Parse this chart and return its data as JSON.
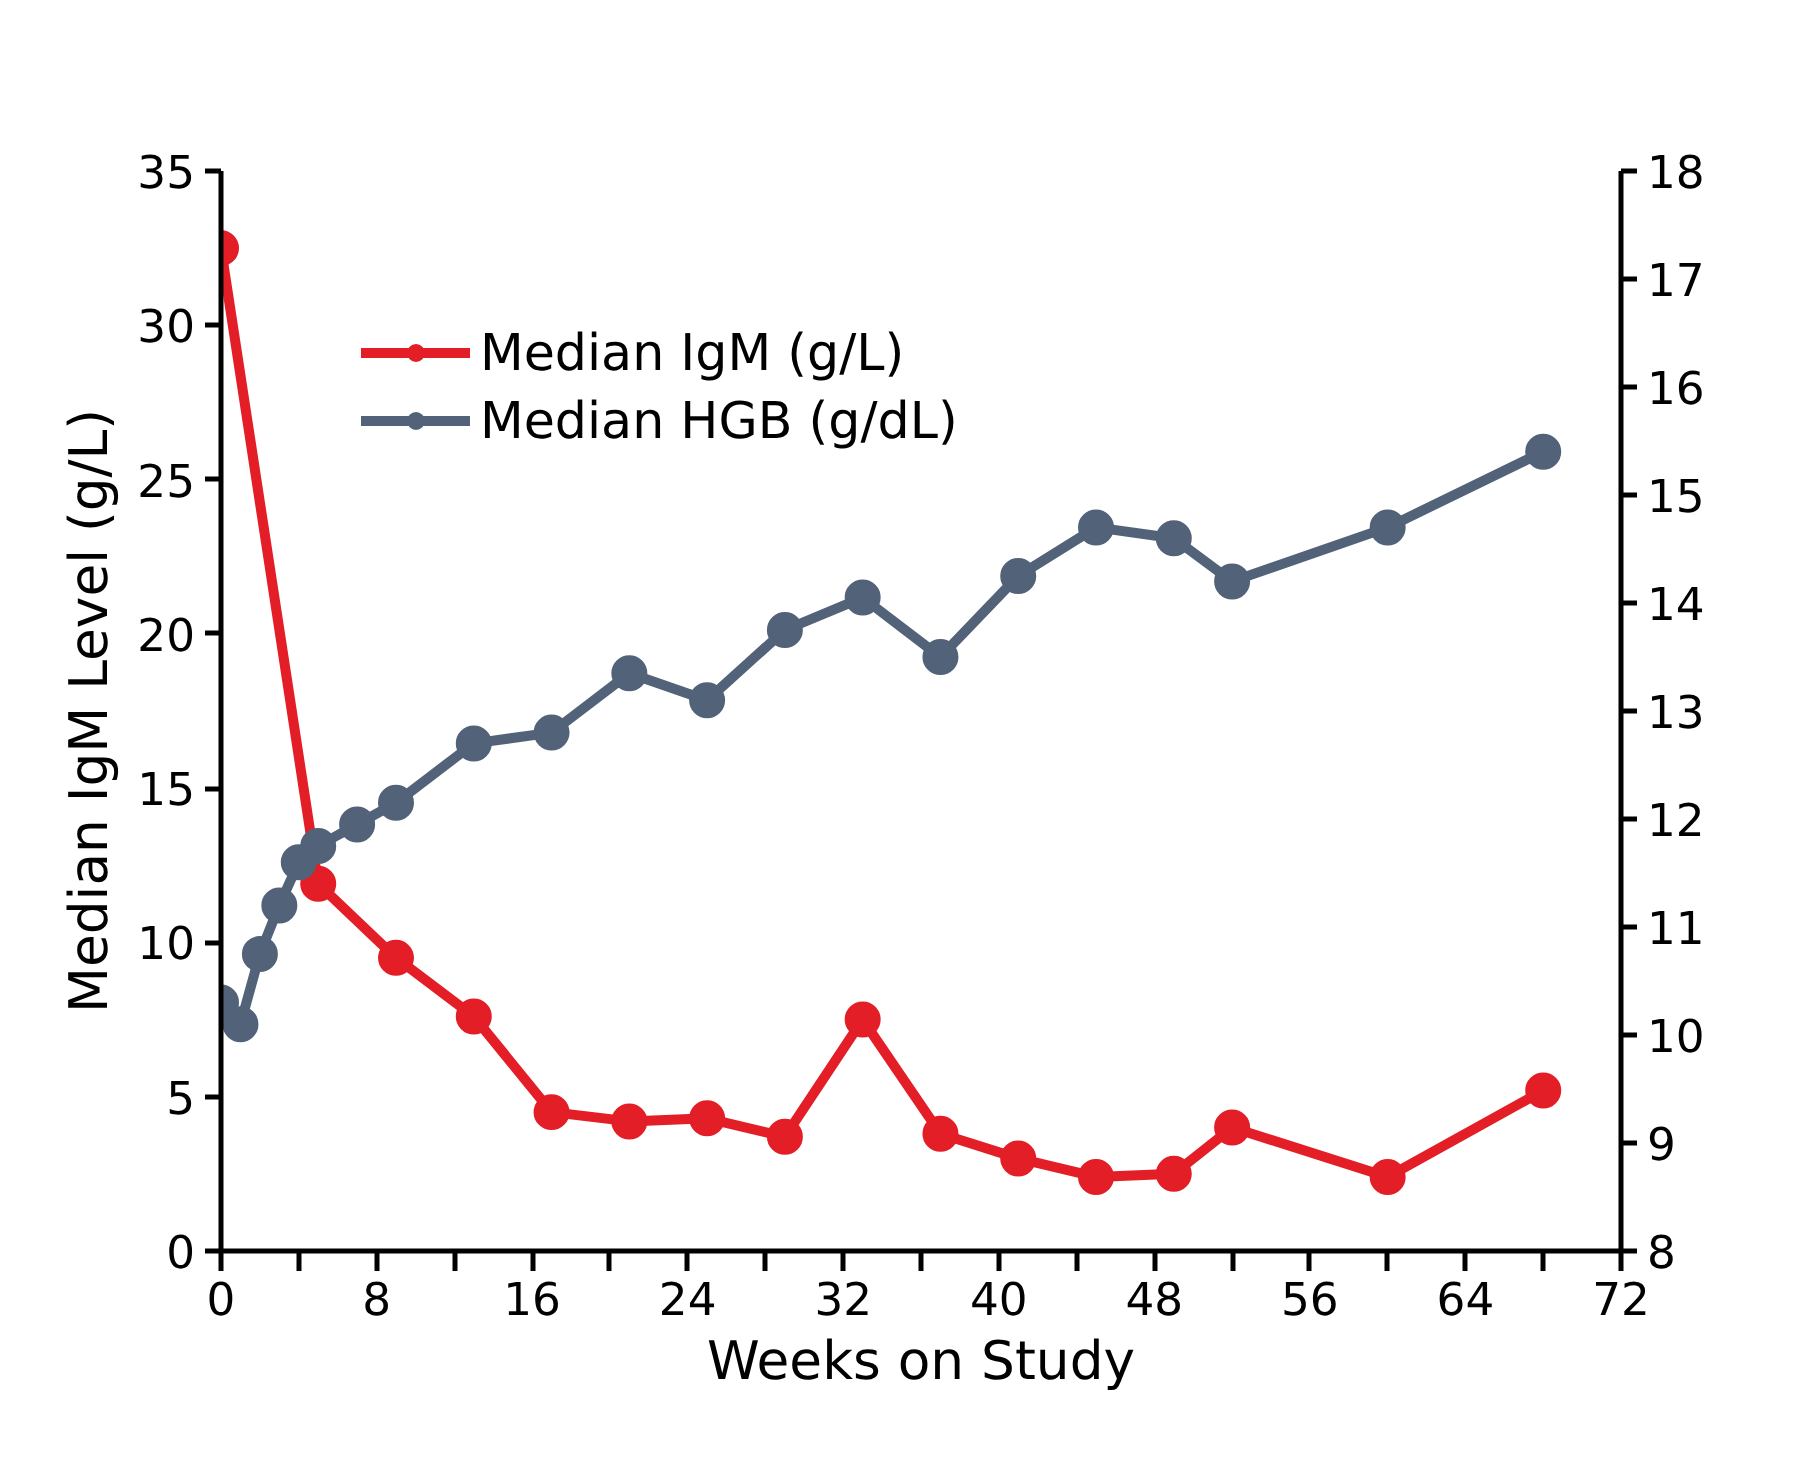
{
  "chart_data": {
    "type": "line",
    "xlabel": "Weeks on Study",
    "ylabel": "Median IgM Level (g/L)",
    "xlim": [
      0,
      72
    ],
    "xticks": [
      0,
      {
        "value": 4,
        "label": null
      },
      8,
      {
        "value": 12,
        "label": null
      },
      16,
      {
        "value": 20,
        "label": null
      },
      24,
      {
        "value": 28,
        "label": null
      },
      32,
      {
        "value": 36,
        "label": null
      },
      40,
      {
        "value": 44,
        "label": null
      },
      48,
      {
        "value": 52,
        "label": null
      },
      56,
      {
        "value": 60,
        "label": null
      },
      64,
      {
        "value": 68,
        "label": null
      },
      72
    ],
    "ylim": [
      0,
      35
    ],
    "yticks": [
      0,
      5,
      10,
      15,
      20,
      25,
      30,
      35
    ],
    "y2lim": [
      8,
      18
    ],
    "y2ticks": [
      8,
      9,
      10,
      11,
      12,
      13,
      14,
      15,
      16,
      17,
      18
    ],
    "grid": false,
    "legend": "top left",
    "marker": "circle",
    "line_style": "solid",
    "series": [
      {
        "name": "Median IgM (g/L)",
        "color": "#e31e26",
        "x": [
          0,
          5,
          9,
          13,
          17,
          21,
          25,
          29,
          33,
          37,
          41,
          45,
          49,
          52,
          60,
          68
        ],
        "values": [
          32.5,
          11.9,
          9.5,
          7.6,
          4.5,
          4.2,
          4.3,
          3.7,
          7.5,
          3.8,
          3.0,
          2.4,
          2.5,
          4.0,
          2.4,
          5.2
        ]
      },
      {
        "name": "Median HGB (g/dL)",
        "color": "#526278",
        "axis": "y2",
        "x": [
          0,
          1,
          2,
          3,
          4,
          5,
          7,
          9,
          13,
          17,
          21,
          25,
          29,
          33,
          37,
          41,
          45,
          49,
          52,
          60,
          68
        ],
        "values": [
          10.3,
          10.1,
          10.75,
          11.2,
          11.6,
          11.75,
          11.95,
          12.15,
          12.7,
          12.8,
          13.35,
          13.1,
          13.75,
          14.05,
          13.5,
          14.25,
          14.7,
          14.6,
          14.2,
          14.7,
          15.4
        ]
      }
    ]
  }
}
